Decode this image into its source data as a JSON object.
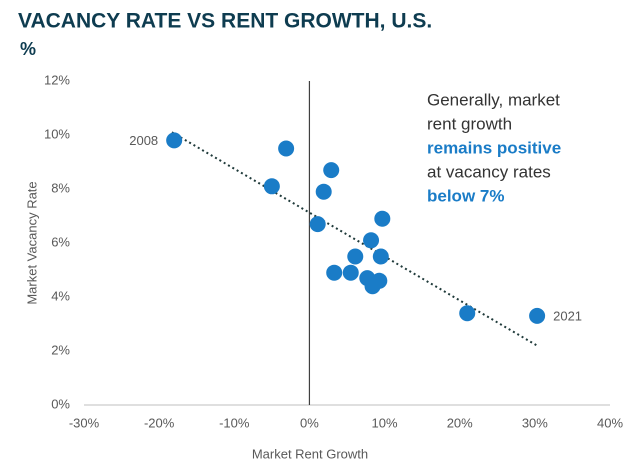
{
  "chart_data": {
    "type": "scatter",
    "title": "VACANCY RATE VS RENT GROWTH, U.S.",
    "subtitle": "%",
    "x_label": "Market Rent Growth",
    "y_label": "Market Vacancy Rate",
    "color": "#1a7cc7",
    "x": [
      -18,
      -3.1,
      -5.0,
      2.9,
      1.9,
      1.1,
      9.7,
      8.2,
      6.1,
      9.5,
      3.3,
      5.5,
      7.7,
      9.3,
      8.4,
      21.0,
      30.3
    ],
    "values": [
      9.8,
      9.5,
      8.1,
      8.7,
      7.9,
      6.7,
      6.9,
      6.1,
      5.5,
      5.5,
      4.9,
      4.9,
      4.7,
      4.6,
      4.4,
      3.4,
      3.3
    ],
    "point_labels": [
      "2008",
      null,
      null,
      null,
      null,
      null,
      null,
      null,
      null,
      null,
      null,
      null,
      null,
      null,
      null,
      null,
      "2021"
    ],
    "trendline": {
      "x": [
        -18.3,
        30.3
      ],
      "y": [
        10.1,
        2.2
      ]
    },
    "zero_line": true,
    "xlim": [
      -30,
      40
    ],
    "ylim": [
      0,
      12
    ],
    "xticks": [
      {
        "value": -30,
        "label": "-30%"
      },
      {
        "value": -20,
        "label": "-20%"
      },
      {
        "value": -10,
        "label": "-10%"
      },
      {
        "value": 0,
        "label": "0%"
      },
      {
        "value": 10,
        "label": "10%"
      },
      {
        "value": 20,
        "label": "20%"
      },
      {
        "value": 30,
        "label": "30%"
      },
      {
        "value": 40,
        "label": "40%"
      }
    ],
    "yticks": [
      {
        "value": 0,
        "label": "0%"
      },
      {
        "value": 2,
        "label": "2%"
      },
      {
        "value": 4,
        "label": "4%"
      },
      {
        "value": 6,
        "label": "6%"
      },
      {
        "value": 8,
        "label": "8%"
      },
      {
        "value": 10,
        "label": "10%"
      },
      {
        "value": 12,
        "label": "12%"
      }
    ],
    "annotation": [
      {
        "text": "Generally, market",
        "bold": false
      },
      {
        "text": "rent growth",
        "bold": false
      },
      {
        "text": "remains positive",
        "bold": true
      },
      {
        "text": "at vacancy rates",
        "bold": false
      },
      {
        "text": "below 7%",
        "bold": true
      }
    ]
  }
}
